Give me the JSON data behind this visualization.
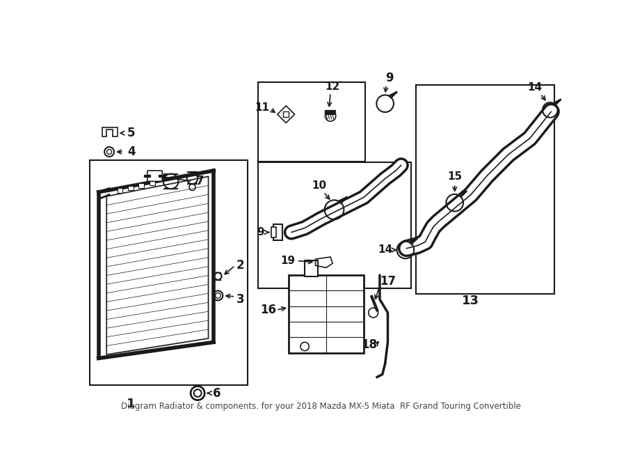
{
  "bg_color": "#ffffff",
  "line_color": "#1a1a1a",
  "title": "Diagram Radiator & components. for your 2018 Mazda MX-5 Miata  RF Grand Touring Convertible",
  "figsize": [
    9.0,
    6.62
  ],
  "dpi": 100
}
